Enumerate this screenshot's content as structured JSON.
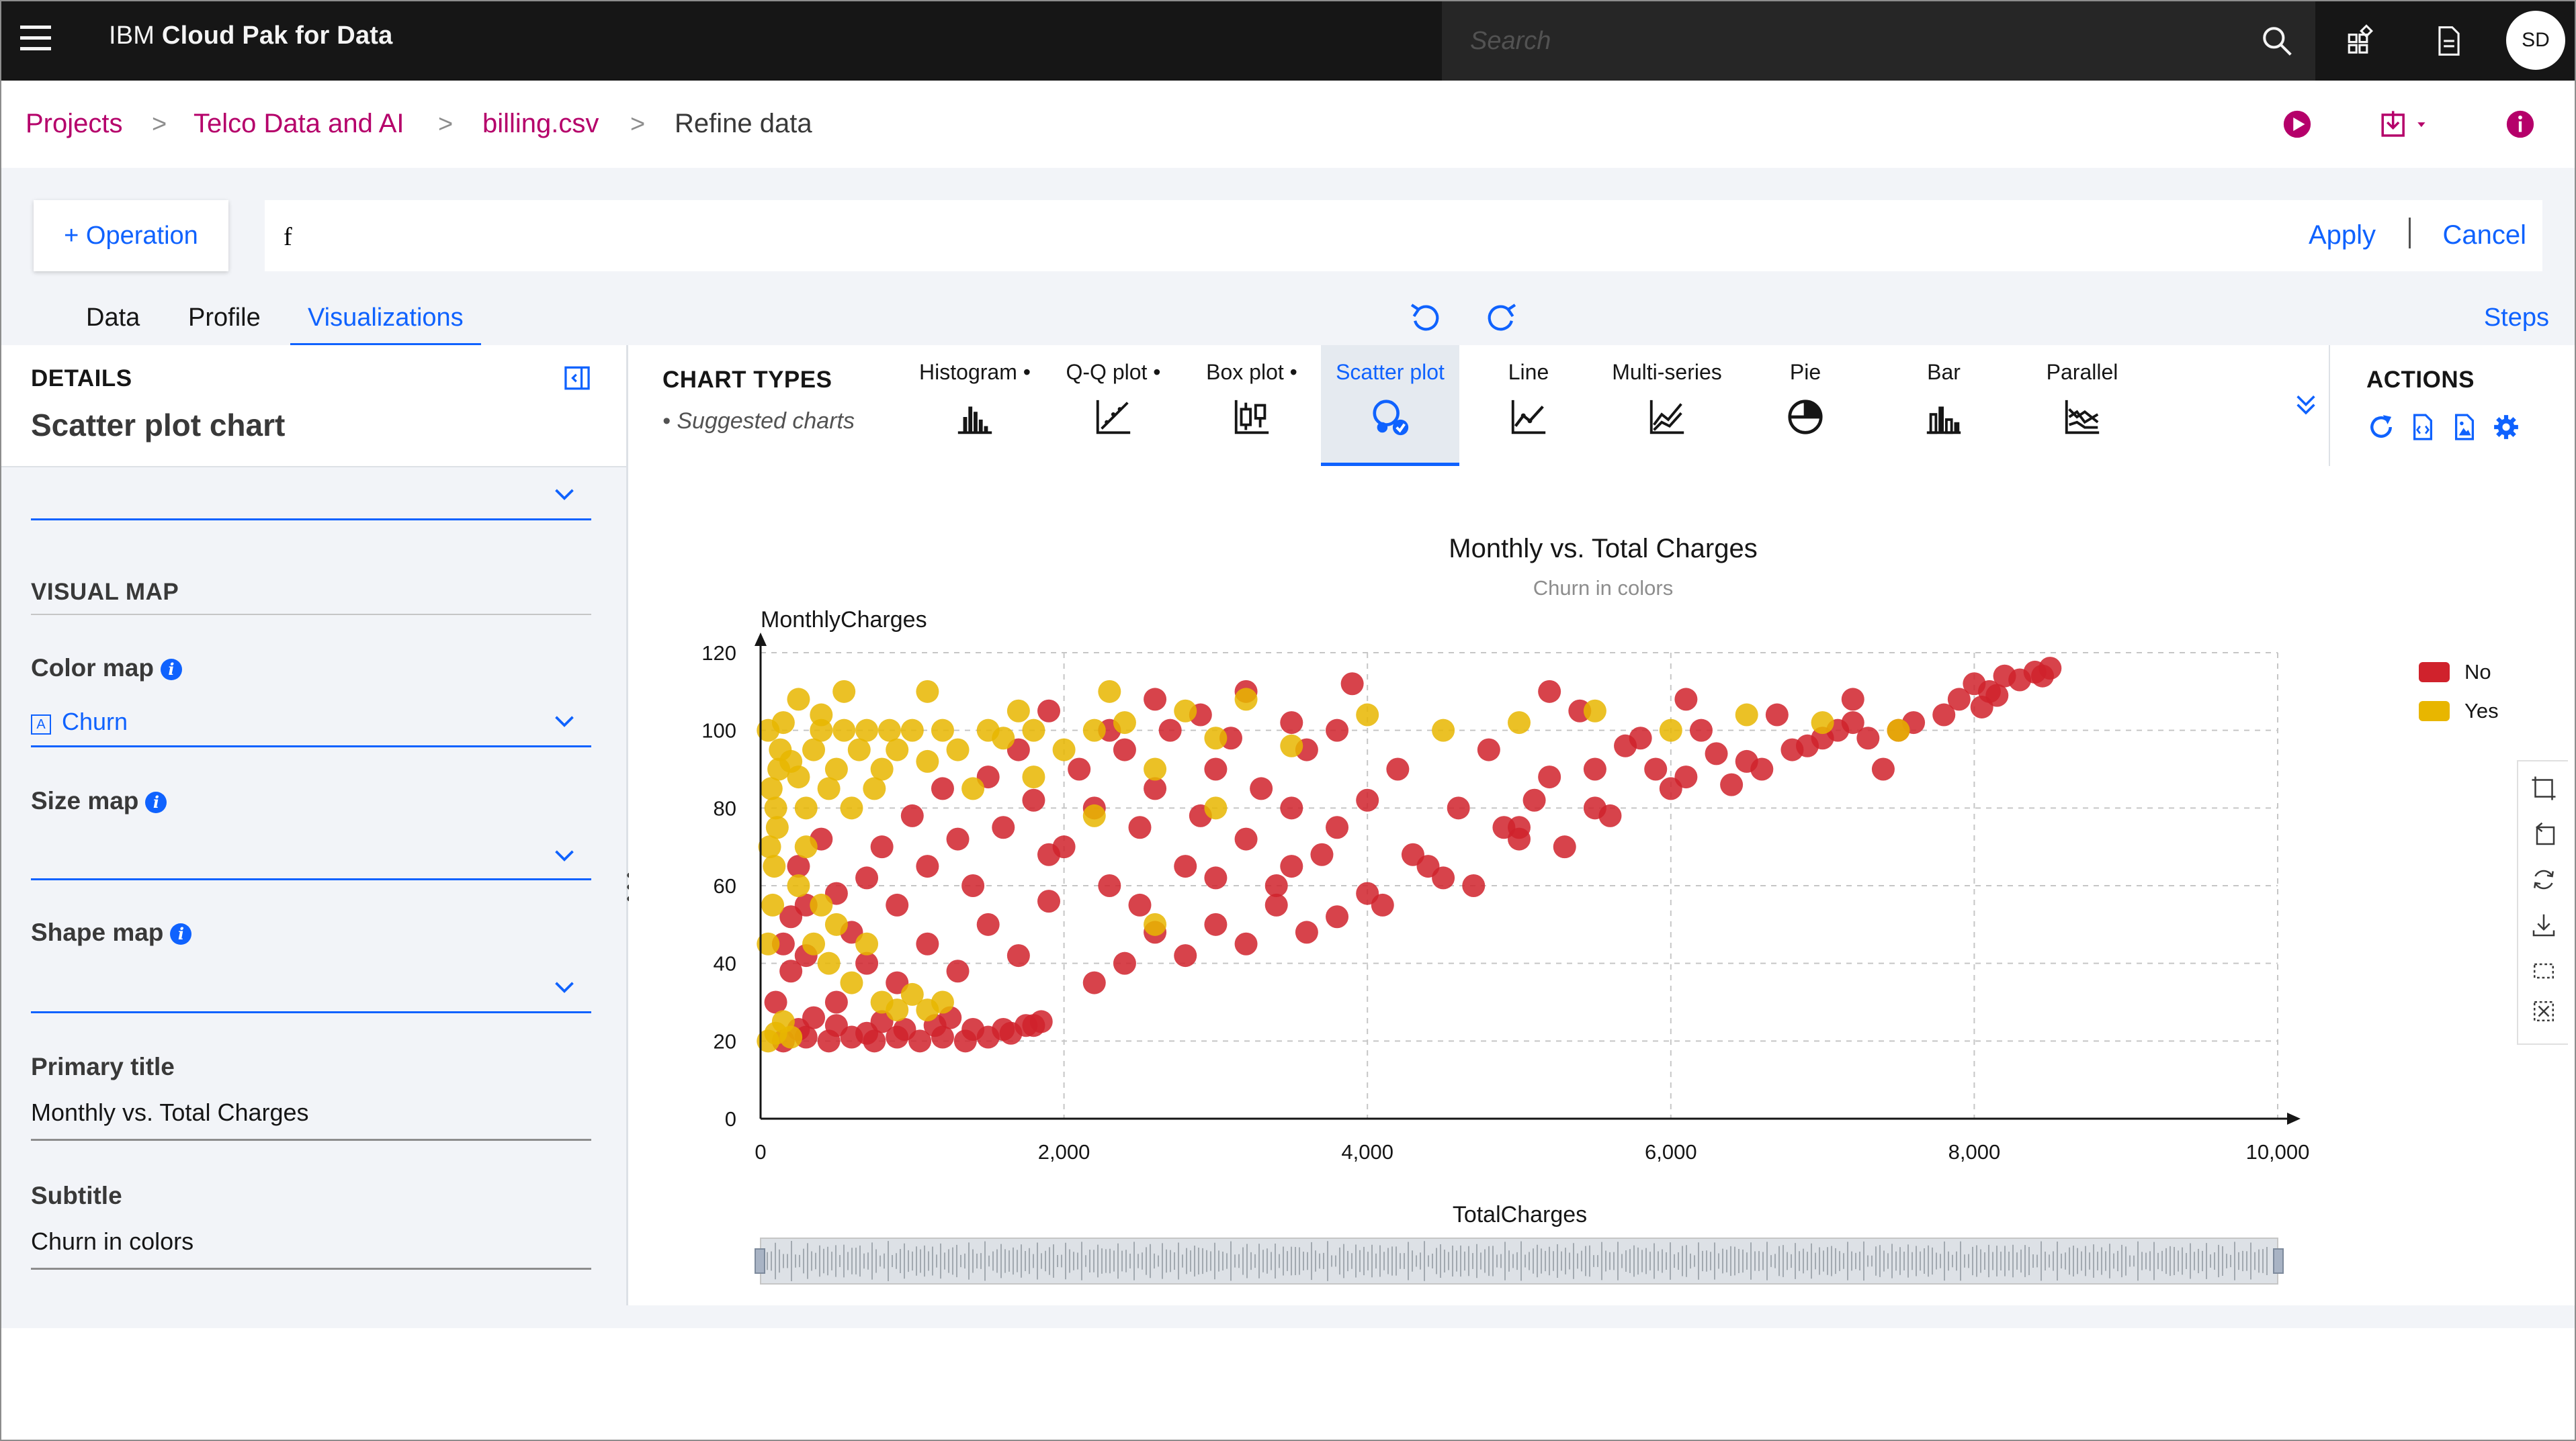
{
  "topbar": {
    "brand_prefix": "IBM ",
    "brand_name": "Cloud Pak for Data",
    "search_placeholder": "Search",
    "avatar_initials": "SD"
  },
  "breadcrumb": {
    "items": [
      "Projects",
      "Telco Data and AI",
      "billing.csv"
    ],
    "current": "Refine data",
    "separator": ">"
  },
  "operation_bar": {
    "operation_label": "Operation",
    "code_value": "f",
    "apply_label": "Apply",
    "cancel_label": "Cancel"
  },
  "tabs": {
    "items": [
      "Data",
      "Profile",
      "Visualizations"
    ],
    "active": "Visualizations",
    "steps_label": "Steps"
  },
  "details": {
    "section_title": "DETAILS",
    "chart_name": "Scatter plot chart",
    "visual_map_title": "VISUAL MAP",
    "color_map_label": "Color map",
    "color_map_value": "Churn",
    "color_map_type_glyph": "A",
    "size_map_label": "Size map",
    "shape_map_label": "Shape map",
    "primary_title_label": "Primary title",
    "primary_title_value": "Monthly vs. Total Charges",
    "subtitle_label": "Subtitle",
    "subtitle_value": "Churn in colors"
  },
  "chart_types": {
    "title": "CHART TYPES",
    "suggested_label": "Suggested charts",
    "items": [
      {
        "label": "Histogram",
        "icon": "histogram-icon",
        "suggested": true
      },
      {
        "label": "Q-Q plot",
        "icon": "qq-plot-icon",
        "suggested": true
      },
      {
        "label": "Box plot",
        "icon": "box-plot-icon",
        "suggested": true
      },
      {
        "label": "Scatter plot",
        "icon": "scatter-plot-icon",
        "suggested": false
      },
      {
        "label": "Line",
        "icon": "line-chart-icon",
        "suggested": false
      },
      {
        "label": "Multi-series",
        "icon": "multi-series-icon",
        "suggested": false
      },
      {
        "label": "Pie",
        "icon": "pie-chart-icon",
        "suggested": false
      },
      {
        "label": "Bar",
        "icon": "bar-chart-icon",
        "suggested": false
      },
      {
        "label": "Parallel",
        "icon": "parallel-icon",
        "suggested": false
      }
    ],
    "active": "Scatter plot"
  },
  "actions": {
    "title": "ACTIONS",
    "icons": [
      "refresh-icon",
      "code-file-icon",
      "image-file-icon",
      "settings-icon"
    ]
  },
  "colors": {
    "accent": "#0f62fe",
    "breadcrumb_link": "#b5006a",
    "churn_no": "#d0222c",
    "churn_yes": "#e8b600"
  },
  "chart_data": {
    "type": "scatter",
    "title": "Monthly vs. Total Charges",
    "subtitle": "Churn in colors",
    "xlabel": "TotalCharges",
    "ylabel": "MonthlyCharges",
    "xlim": [
      0,
      10000
    ],
    "ylim": [
      0,
      120
    ],
    "x_ticks": [
      "0",
      "2,000",
      "4,000",
      "6,000",
      "8,000",
      "10,000"
    ],
    "y_ticks": [
      "0",
      "20",
      "40",
      "60",
      "80",
      "100",
      "120"
    ],
    "grid": true,
    "legend_position": "top-right",
    "series": [
      {
        "name": "No",
        "color": "#d0222c",
        "points": [
          [
            150,
            20
          ],
          [
            300,
            21
          ],
          [
            450,
            20
          ],
          [
            600,
            21
          ],
          [
            750,
            20
          ],
          [
            900,
            21
          ],
          [
            1050,
            20
          ],
          [
            1200,
            21
          ],
          [
            1350,
            20
          ],
          [
            1500,
            21
          ],
          [
            1650,
            22
          ],
          [
            1800,
            24
          ],
          [
            1850,
            25
          ],
          [
            250,
            23
          ],
          [
            500,
            24
          ],
          [
            700,
            22
          ],
          [
            950,
            23
          ],
          [
            1150,
            24
          ],
          [
            1400,
            23
          ],
          [
            1600,
            23
          ],
          [
            350,
            26
          ],
          [
            800,
            25
          ],
          [
            1250,
            26
          ],
          [
            1750,
            24
          ],
          [
            100,
            30
          ],
          [
            200,
            38
          ],
          [
            150,
            45
          ],
          [
            300,
            55
          ],
          [
            250,
            65
          ],
          [
            400,
            72
          ],
          [
            500,
            58
          ],
          [
            600,
            48
          ],
          [
            700,
            62
          ],
          [
            800,
            70
          ],
          [
            900,
            55
          ],
          [
            1000,
            78
          ],
          [
            1100,
            65
          ],
          [
            1200,
            85
          ],
          [
            1300,
            72
          ],
          [
            1400,
            60
          ],
          [
            1500,
            88
          ],
          [
            1600,
            75
          ],
          [
            1700,
            95
          ],
          [
            1800,
            82
          ],
          [
            1900,
            68
          ],
          [
            2000,
            70
          ],
          [
            2100,
            90
          ],
          [
            2200,
            80
          ],
          [
            2300,
            60
          ],
          [
            2400,
            95
          ],
          [
            2500,
            75
          ],
          [
            2600,
            85
          ],
          [
            2700,
            100
          ],
          [
            2800,
            65
          ],
          [
            2900,
            78
          ],
          [
            3000,
            90
          ],
          [
            3100,
            98
          ],
          [
            3200,
            72
          ],
          [
            3300,
            85
          ],
          [
            3400,
            60
          ],
          [
            3500,
            80
          ],
          [
            3600,
            95
          ],
          [
            3700,
            68
          ],
          [
            3800,
            75
          ],
          [
            3900,
            112
          ],
          [
            4000,
            82
          ],
          [
            1900,
            105
          ],
          [
            2300,
            100
          ],
          [
            2600,
            108
          ],
          [
            2900,
            104
          ],
          [
            3200,
            110
          ],
          [
            3500,
            102
          ],
          [
            3800,
            100
          ],
          [
            4200,
            90
          ],
          [
            4400,
            65
          ],
          [
            4600,
            80
          ],
          [
            4800,
            95
          ],
          [
            5000,
            72
          ],
          [
            5200,
            88
          ],
          [
            5400,
            105
          ],
          [
            5600,
            78
          ],
          [
            5800,
            98
          ],
          [
            6000,
            85
          ],
          [
            6200,
            100
          ],
          [
            6500,
            92
          ],
          [
            6800,
            95
          ],
          [
            7000,
            98
          ],
          [
            7200,
            102
          ],
          [
            7500,
            100
          ],
          [
            7800,
            104
          ],
          [
            4100,
            55
          ],
          [
            4300,
            68
          ],
          [
            4700,
            60
          ],
          [
            4900,
            75
          ],
          [
            5100,
            82
          ],
          [
            5300,
            70
          ],
          [
            5500,
            90
          ],
          [
            5700,
            96
          ],
          [
            5900,
            90
          ],
          [
            6100,
            88
          ],
          [
            6300,
            94
          ],
          [
            6600,
            90
          ],
          [
            6900,
            96
          ],
          [
            7100,
            100
          ],
          [
            7300,
            98
          ],
          [
            7600,
            102
          ],
          [
            7900,
            108
          ],
          [
            8000,
            112
          ],
          [
            8100,
            110
          ],
          [
            8200,
            114
          ],
          [
            8300,
            113
          ],
          [
            8400,
            115
          ],
          [
            8500,
            116
          ],
          [
            8450,
            114
          ],
          [
            8050,
            106
          ],
          [
            8150,
            109
          ],
          [
            2200,
            35
          ],
          [
            2400,
            40
          ],
          [
            2600,
            48
          ],
          [
            2800,
            42
          ],
          [
            3000,
            50
          ],
          [
            3200,
            45
          ],
          [
            3400,
            55
          ],
          [
            3600,
            48
          ],
          [
            3800,
            52
          ],
          [
            4000,
            58
          ],
          [
            1500,
            50
          ],
          [
            1700,
            42
          ],
          [
            1900,
            56
          ],
          [
            1300,
            38
          ],
          [
            1100,
            45
          ],
          [
            900,
            35
          ],
          [
            700,
            40
          ],
          [
            500,
            30
          ],
          [
            300,
            42
          ],
          [
            200,
            52
          ],
          [
            3000,
            62
          ],
          [
            3500,
            65
          ],
          [
            2500,
            55
          ],
          [
            4500,
            62
          ],
          [
            5000,
            75
          ],
          [
            5500,
            80
          ],
          [
            6400,
            86
          ],
          [
            7400,
            90
          ],
          [
            5200,
            110
          ],
          [
            6100,
            108
          ],
          [
            6700,
            104
          ],
          [
            7200,
            108
          ]
        ]
      },
      {
        "name": "Yes",
        "color": "#e8b600",
        "points": [
          [
            50,
            20
          ],
          [
            100,
            22
          ],
          [
            150,
            25
          ],
          [
            200,
            21
          ],
          [
            50,
            45
          ],
          [
            80,
            55
          ],
          [
            60,
            70
          ],
          [
            100,
            80
          ],
          [
            120,
            90
          ],
          [
            70,
            85
          ],
          [
            90,
            65
          ],
          [
            110,
            75
          ],
          [
            130,
            95
          ],
          [
            50,
            100
          ],
          [
            150,
            102
          ],
          [
            200,
            92
          ],
          [
            250,
            88
          ],
          [
            300,
            80
          ],
          [
            350,
            95
          ],
          [
            400,
            100
          ],
          [
            450,
            85
          ],
          [
            500,
            90
          ],
          [
            550,
            100
          ],
          [
            600,
            80
          ],
          [
            650,
            95
          ],
          [
            700,
            100
          ],
          [
            750,
            85
          ],
          [
            800,
            90
          ],
          [
            850,
            100
          ],
          [
            900,
            95
          ],
          [
            1000,
            100
          ],
          [
            1100,
            92
          ],
          [
            1200,
            100
          ],
          [
            1300,
            95
          ],
          [
            1400,
            85
          ],
          [
            1500,
            100
          ],
          [
            250,
            60
          ],
          [
            300,
            70
          ],
          [
            350,
            45
          ],
          [
            400,
            55
          ],
          [
            450,
            40
          ],
          [
            500,
            50
          ],
          [
            600,
            35
          ],
          [
            700,
            45
          ],
          [
            800,
            30
          ],
          [
            900,
            28
          ],
          [
            1000,
            32
          ],
          [
            1100,
            28
          ],
          [
            1200,
            30
          ],
          [
            1600,
            98
          ],
          [
            1700,
            105
          ],
          [
            1800,
            100
          ],
          [
            2000,
            95
          ],
          [
            2200,
            100
          ],
          [
            2400,
            102
          ],
          [
            2600,
            90
          ],
          [
            2800,
            105
          ],
          [
            3000,
            98
          ],
          [
            3200,
            108
          ],
          [
            3500,
            96
          ],
          [
            4000,
            104
          ],
          [
            4500,
            100
          ],
          [
            5000,
            102
          ],
          [
            5500,
            105
          ],
          [
            6000,
            100
          ],
          [
            6500,
            104
          ],
          [
            7000,
            102
          ],
          [
            7500,
            100
          ],
          [
            250,
            108
          ],
          [
            400,
            104
          ],
          [
            550,
            110
          ],
          [
            1100,
            110
          ],
          [
            2300,
            110
          ],
          [
            1800,
            88
          ],
          [
            2200,
            78
          ],
          [
            2600,
            50
          ],
          [
            3000,
            80
          ]
        ]
      }
    ]
  }
}
